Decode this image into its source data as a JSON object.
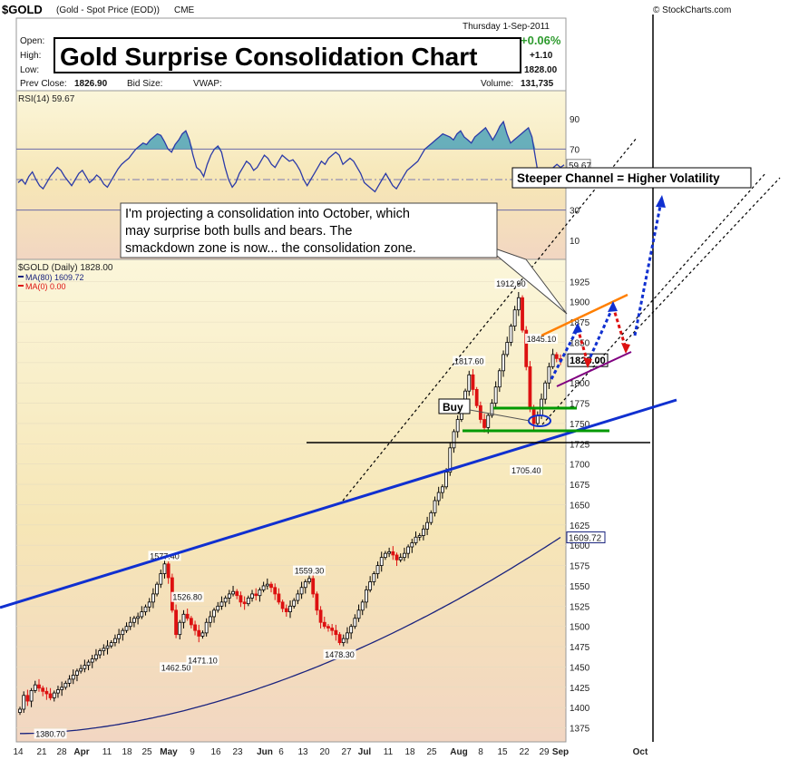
{
  "header": {
    "symbol": "$GOLD",
    "description": "(Gold - Spot Price (EOD))",
    "exchange": "CME",
    "source": "© StockCharts.com",
    "date": "Thursday 1-Sep-2011",
    "open_label": "Open:",
    "high_label": "High:",
    "low_label": "Low:",
    "change_pct": "+0.06%",
    "change": "+1.10",
    "last": "1828.00",
    "prev_close_label": "Prev Close:",
    "prev_close": "1826.90",
    "bid_label": "Bid Size:",
    "vwap_label": "VWAP:",
    "volume_label": "Volume:",
    "volume": "131,735"
  },
  "title": "Gold Surprise Consolidation Chart",
  "annotations": {
    "callout": "I'm projecting a consolidation into October, which may surprise both bulls and bears.  The smackdown zone is now... the consolidation zone.",
    "channel": "Steeper Channel = Higher Volatility",
    "buy": "Buy"
  },
  "colors": {
    "up": "#000000",
    "down": "#dd1111",
    "ma80": "#1a237e",
    "rsi_fill": "#4fa3b8",
    "trend_blue": "#1030d0",
    "orange": "#ff7f00",
    "purple": "#800080",
    "green": "#009900"
  },
  "chart_data": [
    {
      "type": "line",
      "title": "RSI(14) 59.67",
      "ylim": [
        0,
        100
      ],
      "ticks": [
        10,
        30,
        70,
        90
      ],
      "reference_lines": [
        30,
        70
      ],
      "last_label": "59.67",
      "values": [
        48,
        50,
        47,
        52,
        55,
        50,
        46,
        44,
        48,
        52,
        55,
        58,
        56,
        52,
        49,
        46,
        50,
        54,
        56,
        52,
        48,
        50,
        53,
        51,
        47,
        45,
        49,
        53,
        57,
        60,
        62,
        64,
        67,
        70,
        72,
        74,
        73,
        76,
        78,
        80,
        79,
        75,
        70,
        68,
        73,
        76,
        80,
        82,
        76,
        66,
        58,
        56,
        52,
        60,
        66,
        70,
        72,
        68,
        58,
        50,
        45,
        48,
        54,
        58,
        62,
        60,
        56,
        58,
        62,
        66,
        64,
        60,
        58,
        62,
        66,
        64,
        62,
        63,
        60,
        56,
        50,
        46,
        50,
        54,
        58,
        62,
        60,
        64,
        66,
        68,
        66,
        60,
        62,
        64,
        62,
        58,
        54,
        48,
        46,
        44,
        42,
        46,
        50,
        54,
        50,
        46,
        44,
        48,
        52,
        56,
        58,
        60,
        62,
        66,
        70,
        72,
        74,
        76,
        78,
        80,
        79,
        78,
        76,
        80,
        82,
        78,
        76,
        74,
        78,
        80,
        82,
        84,
        80,
        76,
        80,
        85,
        88,
        80,
        74,
        76,
        78,
        80,
        82,
        84,
        78,
        64,
        50,
        46,
        50,
        56,
        58,
        60,
        58,
        59.67
      ]
    },
    {
      "type": "candlestick",
      "title": "$GOLD (Daily) 1828.00",
      "legend": [
        "MA(80) 1609.72",
        "MA(0) 0.00"
      ],
      "ylim": [
        1360,
        1950
      ],
      "y_ticks": [
        1375,
        1400,
        1425,
        1450,
        1475,
        1500,
        1525,
        1550,
        1575,
        1600,
        1625,
        1650,
        1675,
        1700,
        1725,
        1750,
        1775,
        1800,
        1825,
        1850,
        1875,
        1900,
        1925
      ],
      "x_ticks": [
        "14",
        "21",
        "28",
        "Apr",
        "11",
        "18",
        "25",
        "May",
        "9",
        "16",
        "23",
        "Jun",
        "6",
        "13",
        "20",
        "27",
        "Jul",
        "11",
        "18",
        "25",
        "Aug",
        "8",
        "15",
        "22",
        "29",
        "Sep",
        "Oct"
      ],
      "ma80_last": "1609.72",
      "closes": [
        1398,
        1415,
        1408,
        1421,
        1428,
        1424,
        1420,
        1417,
        1412,
        1418,
        1422,
        1425,
        1430,
        1435,
        1440,
        1445,
        1448,
        1452,
        1456,
        1460,
        1465,
        1470,
        1473,
        1476,
        1480,
        1485,
        1490,
        1495,
        1500,
        1505,
        1510,
        1512,
        1518,
        1524,
        1530,
        1540,
        1552,
        1565,
        1577,
        1560,
        1520,
        1490,
        1505,
        1515,
        1510,
        1502,
        1495,
        1488,
        1492,
        1505,
        1512,
        1520,
        1525,
        1530,
        1535,
        1540,
        1543,
        1538,
        1530,
        1528,
        1535,
        1540,
        1538,
        1545,
        1550,
        1552,
        1548,
        1540,
        1530,
        1522,
        1518,
        1525,
        1532,
        1540,
        1548,
        1555,
        1559,
        1540,
        1520,
        1505,
        1500,
        1498,
        1495,
        1490,
        1480,
        1485,
        1492,
        1500,
        1510,
        1520,
        1530,
        1545,
        1555,
        1565,
        1575,
        1585,
        1590,
        1592,
        1588,
        1582,
        1585,
        1590,
        1598,
        1603,
        1610,
        1612,
        1620,
        1628,
        1640,
        1655,
        1665,
        1672,
        1690,
        1720,
        1740,
        1755,
        1770,
        1790,
        1810,
        1792,
        1772,
        1755,
        1745,
        1760,
        1775,
        1795,
        1815,
        1835,
        1850,
        1870,
        1890,
        1905,
        1865,
        1820,
        1770,
        1750,
        1760,
        1780,
        1800,
        1820,
        1835,
        1830,
        1828
      ],
      "labels": [
        {
          "text": "1380.70",
          "x": 8,
          "y": 1380.7,
          "pos": "below"
        },
        {
          "text": "1577.40",
          "x": 38,
          "y": 1577.4,
          "pos": "above"
        },
        {
          "text": "1526.80",
          "x": 44,
          "y": 1526.8,
          "pos": "above"
        },
        {
          "text": "1462.50",
          "x": 41,
          "y": 1462.5,
          "pos": "below"
        },
        {
          "text": "1471.10",
          "x": 48,
          "y": 1471.1,
          "pos": "below"
        },
        {
          "text": "1559.30",
          "x": 76,
          "y": 1559.3,
          "pos": "above"
        },
        {
          "text": "1478.30",
          "x": 84,
          "y": 1478.3,
          "pos": "below"
        },
        {
          "text": "1817.60",
          "x": 118,
          "y": 1817.6,
          "pos": "above"
        },
        {
          "text": "1912.90",
          "x": 129,
          "y": 1912.9,
          "pos": "above"
        },
        {
          "text": "1845.10",
          "x": 137,
          "y": 1845.1,
          "pos": "above"
        },
        {
          "text": "1705.40",
          "x": 133,
          "y": 1705.4,
          "pos": "below"
        }
      ],
      "last_label": "1828.00"
    }
  ]
}
